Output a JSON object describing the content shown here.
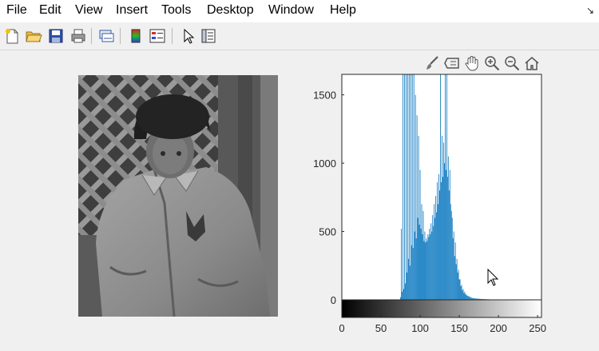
{
  "menu": {
    "items": [
      "File",
      "Edit",
      "View",
      "Insert",
      "Tools",
      "Desktop",
      "Window",
      "Help"
    ],
    "dock_icon": "↘"
  },
  "toolbar": {
    "buttons": [
      "new-figure-icon",
      "open-file-icon",
      "save-icon",
      "print-icon",
      "link-plot-icon",
      "colorbar-icon",
      "legend-icon",
      "edit-plot-arrow-icon",
      "property-inspector-icon"
    ]
  },
  "axes_toolbar": {
    "buttons": [
      "brush-icon",
      "data-tips-icon",
      "pan-hand-icon",
      "zoom-in-icon",
      "zoom-out-icon",
      "restore-view-home-icon"
    ]
  },
  "colors": {
    "bar": "#0072bd",
    "axis": "#262626",
    "background": "#f0f0f0"
  },
  "chart_data": {
    "type": "bar",
    "title": "",
    "xlabel": "",
    "ylabel": "",
    "xlim": [
      0,
      255
    ],
    "ylim": [
      0,
      1650
    ],
    "xticks": [
      "0",
      "50",
      "100",
      "150",
      "200",
      "250"
    ],
    "yticks": [
      "0",
      "500",
      "1000",
      "1500"
    ],
    "grid": false,
    "colorbar": "grayscale 0-255 below x axis",
    "series": [
      {
        "bins_start": 75,
        "bin_step": 1,
        "values": [
          20,
          520,
          60,
          1650,
          80,
          1650,
          120,
          1650,
          200,
          1650,
          300,
          1650,
          250,
          1650,
          400,
          1650,
          380,
          1650,
          500,
          1500,
          450,
          1350,
          600,
          1200,
          550,
          950,
          520,
          700,
          480,
          650,
          430,
          500,
          420,
          450,
          430,
          480,
          460,
          520,
          480,
          560,
          500,
          620,
          540,
          700,
          600,
          760,
          640,
          860,
          700,
          920,
          800,
          1650,
          860,
          1200,
          900,
          1150,
          1000,
          1650,
          950,
          1650,
          900,
          1050,
          800,
          950,
          700,
          650,
          600,
          450,
          500,
          320,
          420,
          260,
          300,
          200,
          220,
          150,
          150,
          100,
          110,
          70,
          80,
          50,
          60,
          40,
          40,
          30,
          30,
          25,
          25,
          20,
          18,
          15,
          14,
          12,
          12,
          10,
          10,
          9,
          9,
          8,
          8,
          7,
          7,
          6,
          6,
          6,
          5,
          5,
          5,
          5,
          4,
          4,
          4,
          4,
          3,
          3,
          3,
          3,
          3,
          3,
          3,
          3,
          3,
          3,
          3,
          2,
          2,
          2,
          2,
          2,
          2,
          2,
          2,
          2,
          2,
          2,
          2,
          2,
          2,
          2,
          2,
          2,
          2,
          2,
          2,
          2,
          2,
          2,
          2,
          2,
          2,
          2,
          2,
          2,
          2,
          2,
          2,
          2,
          2,
          2,
          2,
          2,
          2,
          2,
          2,
          2,
          2,
          2,
          2,
          2,
          2,
          2,
          2,
          2,
          2
        ]
      }
    ]
  }
}
